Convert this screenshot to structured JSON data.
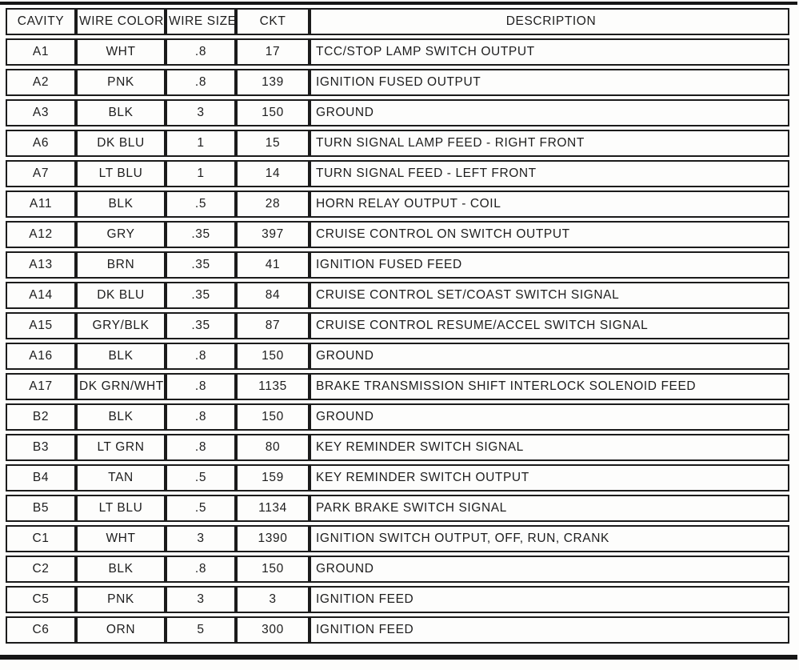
{
  "document": {
    "kind": "connector-pinout-table",
    "colors": {
      "ink": "#1b1b1b",
      "paper": "#fdfdfc"
    }
  },
  "table": {
    "columns": [
      "CAVITY",
      "WIRE COLOR",
      "WIRE SIZE",
      "CKT",
      "DESCRIPTION"
    ],
    "rows": [
      [
        "A1",
        "WHT",
        ".8",
        "17",
        "TCC/STOP LAMP SWITCH OUTPUT"
      ],
      [
        "A2",
        "PNK",
        ".8",
        "139",
        "IGNITION FUSED OUTPUT"
      ],
      [
        "A3",
        "BLK",
        "3",
        "150",
        "GROUND"
      ],
      [
        "A6",
        "DK BLU",
        "1",
        "15",
        "TURN SIGNAL LAMP FEED - RIGHT FRONT"
      ],
      [
        "A7",
        "LT BLU",
        "1",
        "14",
        "TURN SIGNAL FEED - LEFT FRONT"
      ],
      [
        "A11",
        "BLK",
        ".5",
        "28",
        "HORN RELAY OUTPUT - COIL"
      ],
      [
        "A12",
        "GRY",
        ".35",
        "397",
        "CRUISE CONTROL ON SWITCH OUTPUT"
      ],
      [
        "A13",
        "BRN",
        ".35",
        "41",
        "IGNITION FUSED FEED"
      ],
      [
        "A14",
        "DK BLU",
        ".35",
        "84",
        "CRUISE CONTROL SET/COAST SWITCH SIGNAL"
      ],
      [
        "A15",
        "GRY/BLK",
        ".35",
        "87",
        "CRUISE CONTROL RESUME/ACCEL SWITCH SIGNAL"
      ],
      [
        "A16",
        "BLK",
        ".8",
        "150",
        "GROUND"
      ],
      [
        "A17",
        "DK GRN/WHT",
        ".8",
        "1135",
        "BRAKE TRANSMISSION SHIFT INTERLOCK SOLENOID FEED"
      ],
      [
        "B2",
        "BLK",
        ".8",
        "150",
        "GROUND"
      ],
      [
        "B3",
        "LT GRN",
        ".8",
        "80",
        "KEY REMINDER SWITCH SIGNAL"
      ],
      [
        "B4",
        "TAN",
        ".5",
        "159",
        "KEY REMINDER SWITCH OUTPUT"
      ],
      [
        "B5",
        "LT BLU",
        ".5",
        "1134",
        "PARK BRAKE SWITCH SIGNAL"
      ],
      [
        "C1",
        "WHT",
        "3",
        "1390",
        "IGNITION SWITCH OUTPUT, OFF, RUN, CRANK"
      ],
      [
        "C2",
        "BLK",
        ".8",
        "150",
        "GROUND"
      ],
      [
        "C5",
        "PNK",
        "3",
        "3",
        "IGNITION FEED"
      ],
      [
        "C6",
        "ORN",
        "5",
        "300",
        "IGNITION FEED"
      ]
    ]
  }
}
